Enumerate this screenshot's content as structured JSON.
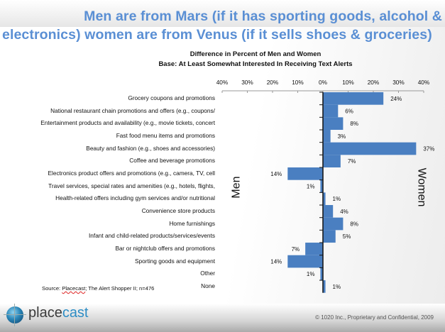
{
  "header": {
    "title_line1": "Men are from Mars (if it has sporting goods, alcohol &",
    "title_line2": "electronics) women are from Venus (if it sells shoes & groceries)"
  },
  "chart_data": {
    "type": "bar",
    "orientation": "horizontal",
    "title": "Difference in Percent of Men and Women",
    "subtitle": "Base: At Least Somewhat Interested In Receiving Text Alerts",
    "left_label": "Men",
    "right_label": "Women",
    "xlim": [
      -40,
      40
    ],
    "ticks": [
      "40%",
      "30%",
      "20%",
      "10%",
      "0%",
      "10%",
      "20%",
      "30%",
      "40%"
    ],
    "grid": false,
    "bar_color": "#4a7fc1",
    "categories": [
      "Grocery coupons and promotions",
      "National restaurant chain promotions and offers (e.g., coupons/",
      "Entertainment products and availability (e.g., movie tickets, concert",
      "Fast food menu items and promotions",
      "Beauty and fashion (e.g., shoes and accessories)",
      "Coffee and beverage promotions",
      "Electronics product offers and promotions (e.g., camera, TV, cell",
      "Travel services, special rates and amenities (e.g., hotels, flights,",
      "Health-related offers including gym services and/or nutritional",
      "Convenience store products",
      "Home furnishings",
      "Infant and child-related products/services/events",
      "Bar or nightclub offers and promotions",
      "Sporting goods and equipment",
      "Other",
      "None"
    ],
    "values": [
      24,
      6,
      8,
      3,
      37,
      7,
      -14,
      -1,
      1,
      4,
      8,
      5,
      -7,
      -14,
      -1,
      1
    ],
    "data_labels": [
      "24%",
      "6%",
      "8%",
      "3%",
      "37%",
      "7%",
      "14%",
      "1%",
      "1%",
      "4%",
      "8%",
      "5%",
      "7%",
      "14%",
      "1%",
      "1%"
    ]
  },
  "source": {
    "prefix": "Source: ",
    "brand": "Placecast",
    "rest": "; The Alert Shopper II; n=476"
  },
  "footer": {
    "logo_a": "place",
    "logo_b": "cast",
    "copyright": "© 1020 Inc., Proprietary and Confidential, 2009"
  }
}
